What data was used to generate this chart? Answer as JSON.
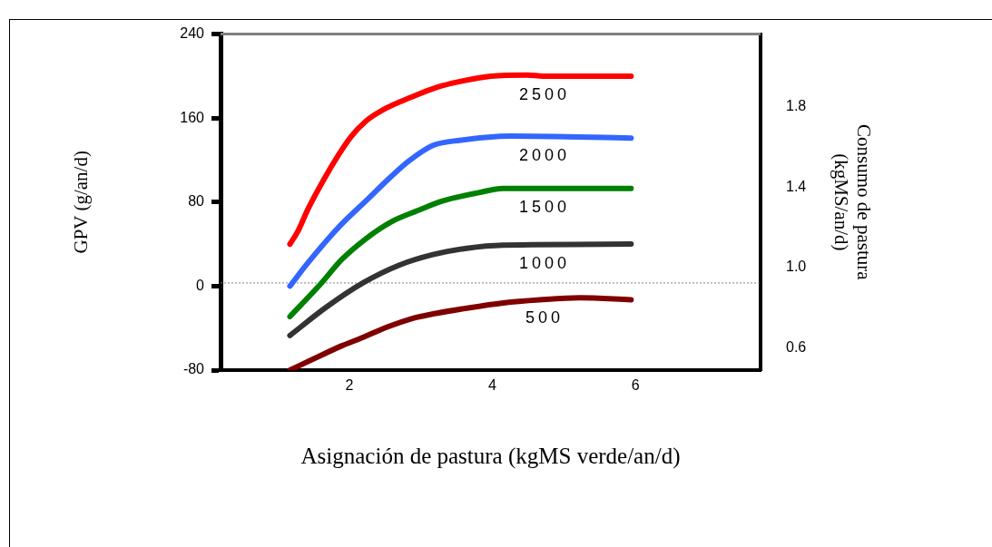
{
  "chart_data": {
    "type": "line",
    "xlabel": "Asignación de pastura (kgMS verde/an/d)",
    "ylabel": "GPV (g/an/d)",
    "y2label": "Consumo de pastura (kgMS/an/d)",
    "xlim": [
      0.2,
      7.75
    ],
    "xticks": [
      2,
      4,
      6
    ],
    "ylim": [
      -80,
      240
    ],
    "yticks": [
      -80,
      0,
      80,
      160,
      240
    ],
    "y2lim": [
      0.49,
      2.16
    ],
    "y2ticks": [
      0.6,
      {
        "value": 1,
        "label": "1.0"
      },
      1.4,
      1.8
    ],
    "grid": false,
    "legend": false,
    "marker": "none",
    "line_style": "solid",
    "ref_lines": [
      {
        "axis": "y",
        "value": 3,
        "color": "#808080",
        "line_style": "dotted"
      }
    ],
    "series": [
      {
        "name": "2500",
        "color": "#ff0000",
        "x": [
          1.17,
          1.28,
          1.42,
          1.64,
          1.85,
          2.02,
          2.23,
          2.53,
          2.87,
          3.21,
          3.56,
          3.98,
          4.49,
          4.71,
          5.94
        ],
        "values": [
          40,
          52,
          73,
          101,
          125,
          142,
          157,
          170,
          180,
          189,
          195,
          200,
          201,
          200,
          200
        ]
      },
      {
        "name": "2000",
        "color": "#3366ff",
        "x": [
          1.17,
          1.42,
          1.85,
          2.23,
          2.58,
          2.83,
          3.17,
          3.56,
          4.24,
          5.94
        ],
        "values": [
          0,
          22,
          56,
          81,
          104,
          119,
          134,
          139,
          143,
          141
        ]
      },
      {
        "name": "1500",
        "color": "#008000",
        "x": [
          1.17,
          1.6,
          1.89,
          2.23,
          2.58,
          2.96,
          3.3,
          3.81,
          4.15,
          5.94
        ],
        "values": [
          -29,
          2,
          25,
          45,
          61,
          72,
          81,
          89,
          93,
          93
        ]
      },
      {
        "name": "1000",
        "color": "#333333",
        "x": [
          1.17,
          1.68,
          2.19,
          2.7,
          3.17,
          3.64,
          4.15,
          5.94
        ],
        "values": [
          -47,
          -20,
          3,
          20,
          30,
          36,
          39,
          40
        ]
      },
      {
        "name": "500",
        "color": "#800000",
        "x": [
          1.17,
          1.51,
          1.89,
          2.15,
          2.53,
          2.87,
          3.21,
          3.64,
          4.15,
          4.66,
          5.22,
          5.94
        ],
        "values": [
          -80,
          -69,
          -57,
          -50,
          -39,
          -31,
          -26,
          -21,
          -16,
          -13,
          -11,
          -13
        ]
      }
    ]
  }
}
